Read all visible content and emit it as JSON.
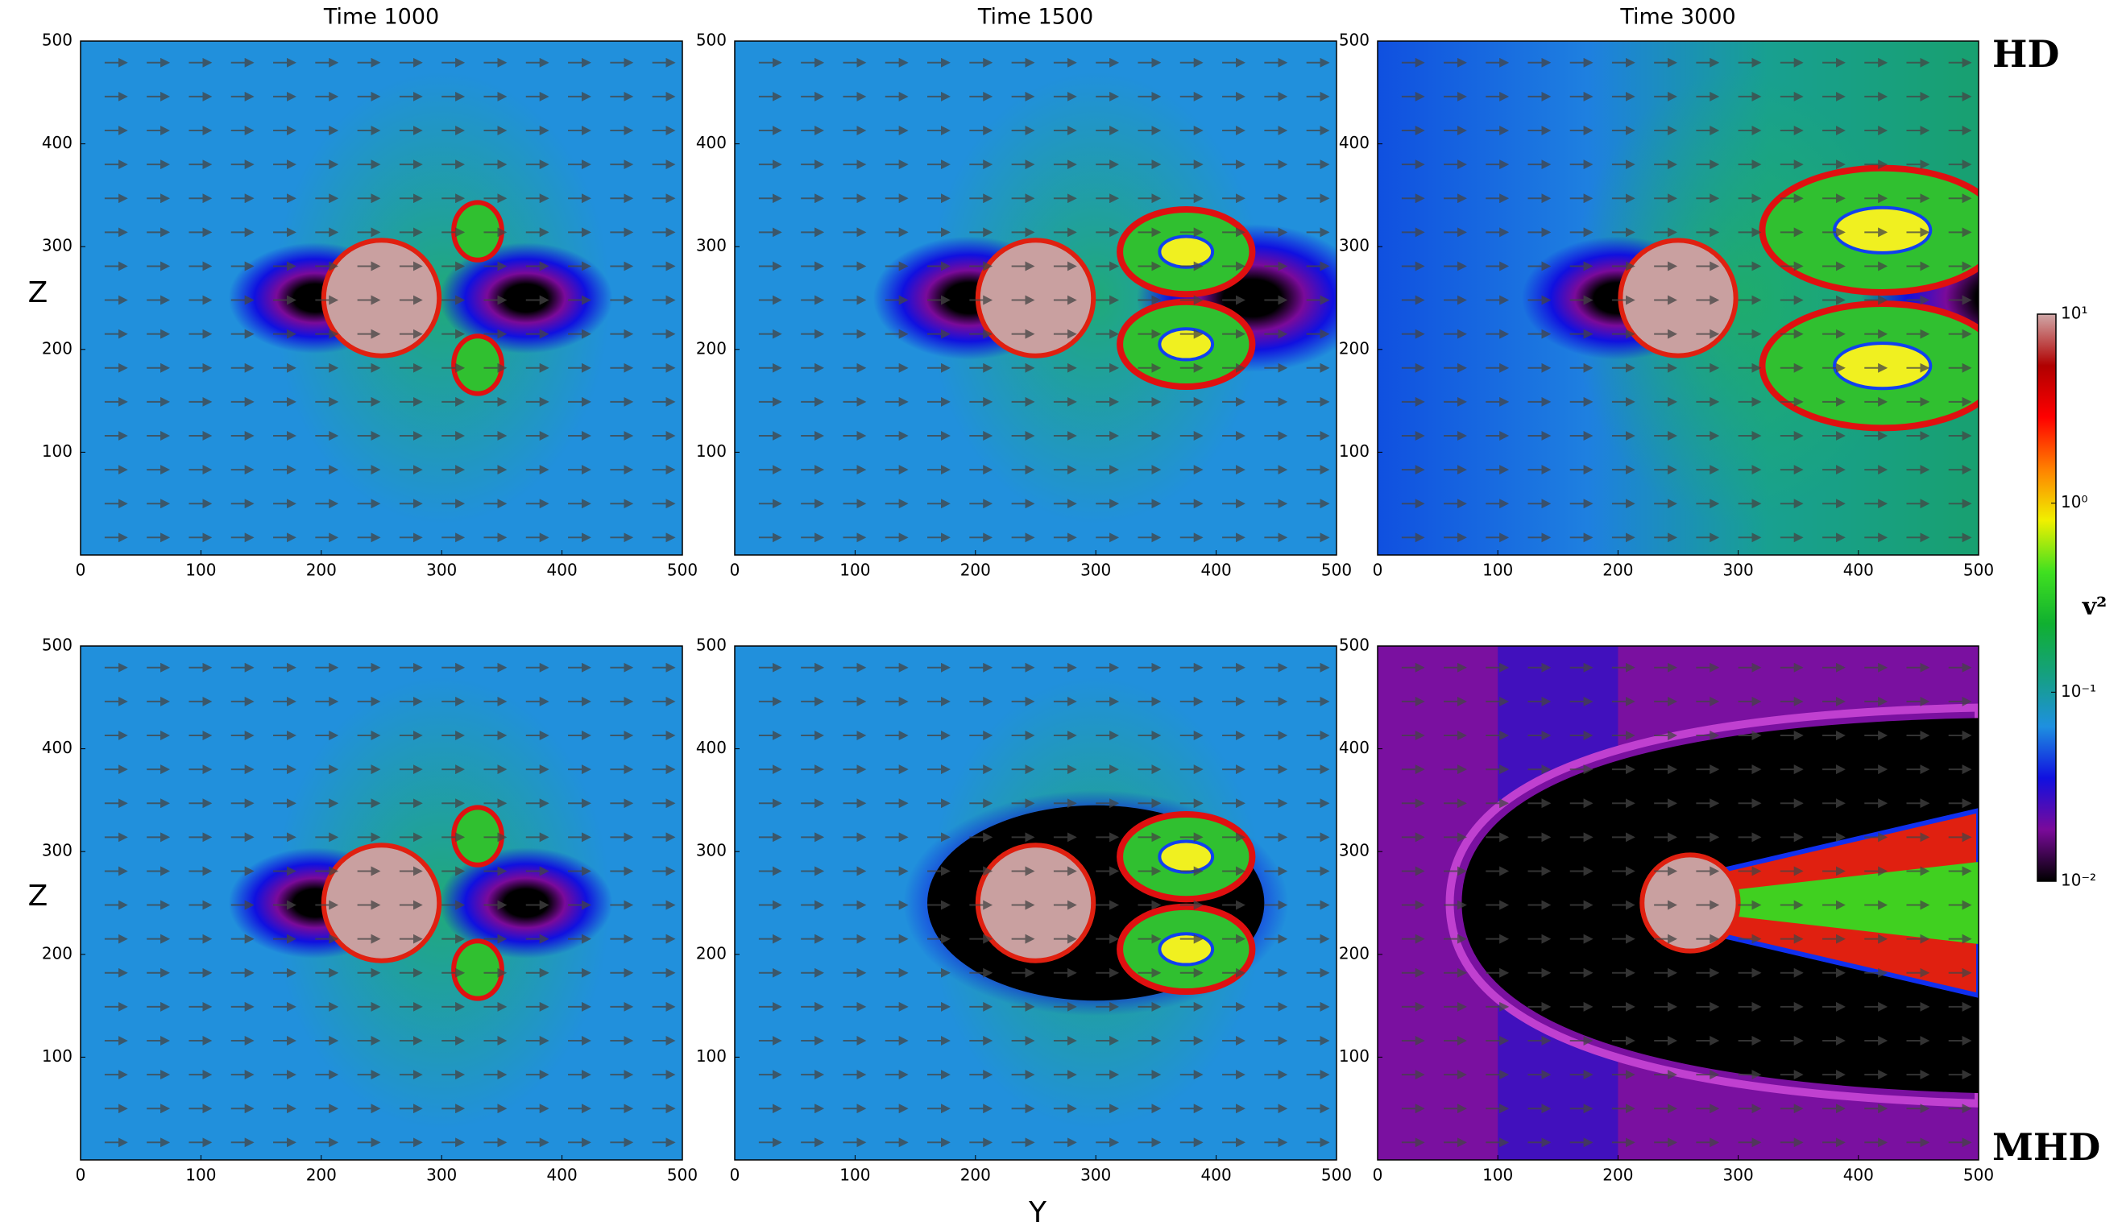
{
  "chart_data": [
    {
      "type": "heatmap",
      "title": "Time  1000",
      "xlim": [
        0,
        500
      ],
      "ylim": [
        0,
        500
      ],
      "xticks": [
        0,
        100,
        200,
        300,
        400,
        500
      ],
      "yticks": [
        100,
        200,
        300,
        400,
        500
      ]
    },
    {
      "type": "heatmap",
      "title": "Time  1500",
      "xlim": [
        0,
        500
      ],
      "ylim": [
        0,
        500
      ],
      "xticks": [
        0,
        100,
        200,
        300,
        400,
        500
      ],
      "yticks": [
        100,
        200,
        300,
        400,
        500
      ]
    },
    {
      "type": "heatmap",
      "title": "Time  3000",
      "xlim": [
        0,
        500
      ],
      "ylim": [
        0,
        500
      ],
      "xticks": [
        0,
        100,
        200,
        300,
        400,
        500
      ],
      "yticks": [
        100,
        200,
        300,
        400,
        500
      ]
    },
    {
      "type": "heatmap",
      "xlim": [
        0,
        500
      ],
      "ylim": [
        0,
        500
      ],
      "xticks": [
        0,
        100,
        200,
        300,
        400,
        500
      ],
      "yticks": [
        100,
        200,
        300,
        400,
        500
      ]
    },
    {
      "type": "heatmap",
      "xlim": [
        0,
        500
      ],
      "ylim": [
        0,
        500
      ],
      "xticks": [
        0,
        100,
        200,
        300,
        400,
        500
      ],
      "yticks": [
        100,
        200,
        300,
        400,
        500
      ]
    },
    {
      "type": "heatmap",
      "xlim": [
        0,
        500
      ],
      "ylim": [
        0,
        500
      ],
      "xticks": [
        0,
        100,
        200,
        300,
        400,
        500
      ],
      "yticks": [
        100,
        200,
        300,
        400,
        500
      ]
    }
  ],
  "row_labels": [
    "HD",
    "MHD"
  ],
  "xlabel": "Y",
  "ylabel": "Z",
  "colorbar": {
    "label": "v²",
    "log": true,
    "lim": [
      0.01,
      10
    ],
    "ticks": [
      {
        "value": 10,
        "label": "10¹"
      },
      {
        "value": 1,
        "label": "10⁰"
      },
      {
        "value": 0.1,
        "label": "10⁻¹"
      },
      {
        "value": 0.01,
        "label": "10⁻²"
      }
    ],
    "colors": [
      "#000000",
      "#7a0a9a",
      "#1010e0",
      "#1e90e0",
      "#15a080",
      "#10b030",
      "#40e020",
      "#f0f000",
      "#ff8000",
      "#ff0000",
      "#b00000",
      "#d0a8a8"
    ]
  }
}
